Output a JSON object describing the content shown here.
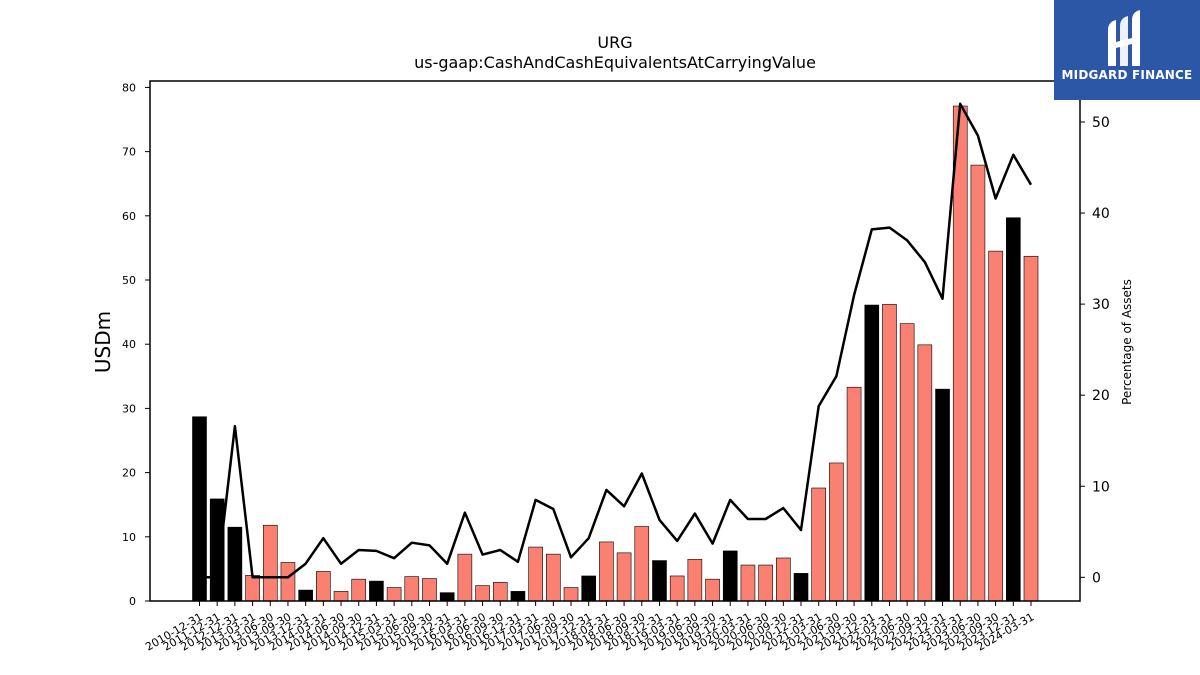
{
  "logo": {
    "text": "MIDGARD FINANCE"
  },
  "chart_data": {
    "type": "bar",
    "title": "URG",
    "subtitle": "us-gaap:CashAndCashEquivalentsAtCarryingValue",
    "ylabel": "USDm",
    "y2label": "Percentage of Assets",
    "ylim": [
      0,
      81
    ],
    "y2lim": [
      -2.6,
      54.5
    ],
    "yticks": [
      0,
      10,
      20,
      30,
      40,
      50,
      60,
      70,
      80
    ],
    "y2ticks": [
      0,
      10,
      20,
      30,
      40,
      50
    ],
    "colors": {
      "annual": "#000000",
      "quarter": "#fa8072",
      "line": "#000000"
    },
    "categories": [
      "2010-12-31",
      "2011-12-31",
      "2012-12-31",
      "2013-03-31",
      "2013-06-30",
      "2013-09-30",
      "2013-12-31",
      "2014-03-31",
      "2014-06-30",
      "2014-09-30",
      "2014-12-31",
      "2015-03-31",
      "2015-06-30",
      "2015-09-30",
      "2015-12-31",
      "2016-03-31",
      "2016-06-30",
      "2016-09-30",
      "2016-12-31",
      "2017-03-31",
      "2017-06-30",
      "2017-09-30",
      "2017-12-31",
      "2018-03-31",
      "2018-06-30",
      "2018-09-30",
      "2018-12-31",
      "2019-03-31",
      "2019-06-30",
      "2019-09-30",
      "2019-12-31",
      "2020-03-31",
      "2020-06-30",
      "2020-09-30",
      "2020-12-31",
      "2021-03-31",
      "2021-06-30",
      "2021-09-30",
      "2021-12-31",
      "2022-03-31",
      "2022-06-30",
      "2022-09-30",
      "2022-12-31",
      "2023-03-31",
      "2023-06-30",
      "2023-09-30",
      "2023-12-31",
      "2024-03-31"
    ],
    "series": [
      {
        "kind": "bar",
        "values": [
          28.7,
          15.9,
          11.5,
          4.0,
          11.8,
          6.0,
          1.7,
          4.6,
          1.5,
          3.4,
          3.1,
          2.1,
          3.8,
          3.5,
          1.3,
          7.3,
          2.4,
          2.9,
          1.5,
          8.4,
          7.3,
          2.1,
          3.9,
          9.2,
          7.5,
          11.6,
          6.3,
          3.9,
          6.5,
          3.4,
          7.8,
          5.6,
          5.6,
          6.7,
          4.3,
          17.6,
          21.5,
          33.3,
          46.1,
          46.2,
          43.2,
          39.9,
          33.0,
          77.1,
          67.9,
          54.5,
          59.7,
          53.7
        ],
        "annual": [
          true,
          true,
          true,
          false,
          false,
          false,
          true,
          false,
          false,
          false,
          true,
          false,
          false,
          false,
          true,
          false,
          false,
          false,
          true,
          false,
          false,
          false,
          true,
          false,
          false,
          false,
          true,
          false,
          false,
          false,
          true,
          false,
          false,
          false,
          true,
          false,
          false,
          false,
          true,
          false,
          false,
          false,
          true,
          false,
          false,
          false,
          true,
          false
        ]
      },
      {
        "kind": "line",
        "axis": "right",
        "values": [
          0.0,
          0.0,
          16.6,
          0.0,
          0.0,
          0.0,
          1.5,
          4.3,
          1.5,
          3.0,
          2.9,
          2.1,
          3.8,
          3.5,
          1.5,
          7.1,
          2.5,
          3.0,
          1.7,
          8.5,
          7.5,
          2.2,
          4.3,
          9.6,
          7.8,
          11.4,
          6.3,
          4.0,
          7.0,
          3.7,
          8.5,
          6.4,
          6.4,
          7.6,
          5.2,
          18.8,
          22.1,
          31.0,
          38.2,
          38.4,
          37.0,
          34.6,
          30.6,
          52.0,
          48.5,
          41.6,
          46.4,
          43.1
        ]
      }
    ]
  }
}
